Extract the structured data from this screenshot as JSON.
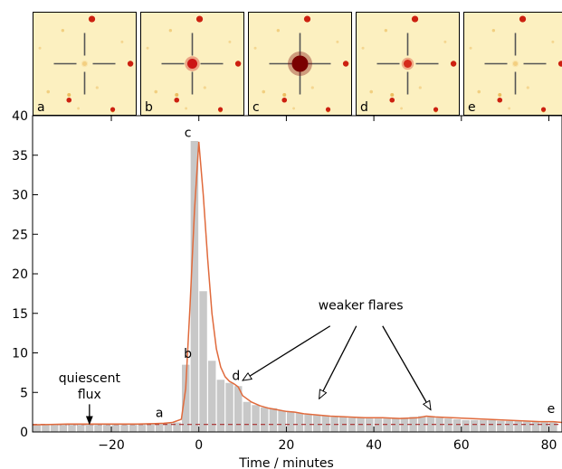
{
  "chart_data": {
    "type": "bar",
    "xlabel": "Time / minutes",
    "ylabel": "",
    "xlim": [
      -38,
      83
    ],
    "ylim": [
      0,
      40
    ],
    "grid": false,
    "x_ticks": [
      -20,
      0,
      20,
      40,
      60,
      80
    ],
    "y_ticks": [
      0,
      5,
      10,
      15,
      20,
      25,
      30,
      35,
      40
    ],
    "bar_width": 2,
    "bars": {
      "x": [
        -37,
        -35,
        -33,
        -31,
        -29,
        -27,
        -25,
        -23,
        -21,
        -19,
        -17,
        -15,
        -13,
        -11,
        -9,
        -7,
        -5,
        -3,
        -1,
        1,
        3,
        5,
        7,
        9,
        11,
        13,
        15,
        17,
        19,
        21,
        23,
        25,
        27,
        29,
        31,
        33,
        35,
        37,
        39,
        41,
        43,
        45,
        47,
        49,
        51,
        53,
        55,
        57,
        59,
        61,
        63,
        65,
        67,
        69,
        71,
        73,
        75,
        77,
        79,
        81
      ],
      "values": [
        1.0,
        1.0,
        1.0,
        1.0,
        1.0,
        1.05,
        1.0,
        1.0,
        1.0,
        1.0,
        1.0,
        1.0,
        1.0,
        1.0,
        1.05,
        1.1,
        1.2,
        8.5,
        36.8,
        17.8,
        9.0,
        6.6,
        6.2,
        5.8,
        3.8,
        3.4,
        3.1,
        3.0,
        2.7,
        2.6,
        2.4,
        2.2,
        2.1,
        2.0,
        1.9,
        1.9,
        1.8,
        1.8,
        1.7,
        1.7,
        1.7,
        1.7,
        1.8,
        1.9,
        2.0,
        1.9,
        1.8,
        1.7,
        1.6,
        1.5,
        1.5,
        1.5,
        1.5,
        1.4,
        1.4,
        1.4,
        1.3,
        1.3,
        1.2,
        1.2
      ]
    },
    "fit_line": {
      "x": [
        -38,
        -34,
        -30,
        -26,
        -22,
        -18,
        -14,
        -10,
        -8,
        -6,
        -4,
        -3,
        -2,
        -1,
        0,
        1,
        2,
        3,
        4,
        5,
        6,
        7,
        8,
        9,
        10,
        12,
        14,
        16,
        18,
        20,
        22,
        24,
        26,
        28,
        30,
        34,
        38,
        42,
        46,
        50,
        52,
        54,
        58,
        62,
        66,
        70,
        74,
        78,
        81,
        83
      ],
      "values": [
        0.9,
        0.95,
        1.0,
        1.0,
        1.0,
        1.0,
        1.0,
        1.05,
        1.1,
        1.2,
        1.6,
        5.5,
        16.0,
        28.0,
        36.7,
        30.0,
        22.0,
        15.0,
        10.5,
        8.2,
        7.0,
        6.4,
        6.1,
        5.7,
        4.6,
        3.8,
        3.3,
        3.0,
        2.8,
        2.6,
        2.5,
        2.3,
        2.2,
        2.1,
        2.0,
        1.9,
        1.8,
        1.8,
        1.7,
        1.8,
        2.0,
        1.9,
        1.8,
        1.7,
        1.6,
        1.5,
        1.4,
        1.3,
        1.3,
        1.2
      ]
    },
    "quiescent_level": 0.95,
    "colors": {
      "bars": "#c8c8c8",
      "line": "#e06a3c",
      "dashed": "#a52a2a",
      "arrow": "#000000"
    },
    "point_labels": [
      {
        "text": "a",
        "x": -9,
        "y": 1.9
      },
      {
        "text": "b",
        "x": -2.5,
        "y": 9.4
      },
      {
        "text": "c",
        "x": -2.5,
        "y": 37.3
      },
      {
        "text": "d",
        "x": 8.5,
        "y": 6.6
      },
      {
        "text": "e",
        "x": 80.5,
        "y": 2.4
      }
    ],
    "annotations": [
      {
        "text_lines": [
          "quiescent",
          "flux"
        ],
        "text_x": -25,
        "text_y": 6.3,
        "arrows": [
          {
            "from": [
              -25,
              3.5
            ],
            "to": [
              -25,
              1.0
            ]
          }
        ]
      },
      {
        "text_lines": [
          "weaker flares"
        ],
        "text_x": 37,
        "text_y": 15.5,
        "arrows": [
          {
            "from": [
              30,
              13.4
            ],
            "to": [
              10,
              6.5
            ]
          },
          {
            "from": [
              36,
              13.4
            ],
            "to": [
              27.5,
              4.2
            ]
          },
          {
            "from": [
              42,
              13.4
            ],
            "to": [
              53,
              2.8
            ]
          }
        ]
      }
    ]
  },
  "thumbnails": [
    {
      "label": "a",
      "source_size": 2.5,
      "colors": {
        "background": "#fcf0c0",
        "source": "#f3cf80"
      }
    },
    {
      "label": "b",
      "source_size": 5.5,
      "colors": {
        "background": "#fcf0c0",
        "source": "#cc1616"
      }
    },
    {
      "label": "c",
      "source_size": 9,
      "colors": {
        "background": "#fcf0c0",
        "source": "#7a0000"
      }
    },
    {
      "label": "d",
      "source_size": 4.5,
      "colors": {
        "background": "#fcf0c0",
        "source": "#d52a1a"
      }
    },
    {
      "label": "e",
      "source_size": 2.5,
      "colors": {
        "background": "#fcf0c0",
        "source": "#f3cf80"
      }
    }
  ]
}
